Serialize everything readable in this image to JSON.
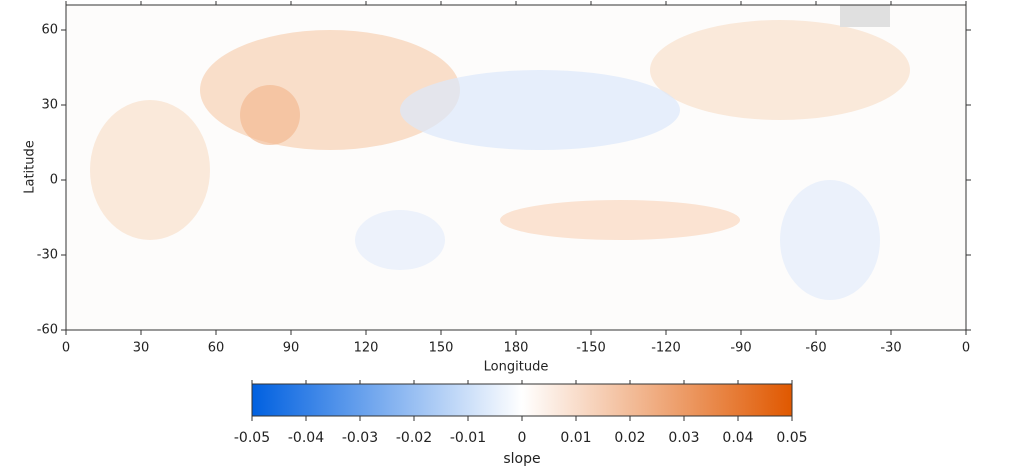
{
  "chart_data": {
    "type": "map",
    "x_label": "Longitude",
    "y_label": "Latitude",
    "xlim": [
      0,
      360
    ],
    "ylim": [
      -60,
      70
    ],
    "xticks": [
      0,
      30,
      60,
      90,
      120,
      150,
      180,
      {
        "value": 210,
        "label": "-150"
      },
      {
        "value": 240,
        "label": "-120"
      },
      {
        "value": 270,
        "label": "-90"
      },
      {
        "value": 300,
        "label": "-60"
      },
      {
        "value": 330,
        "label": "-30"
      },
      {
        "value": 360,
        "label": "0"
      }
    ],
    "yticks": [
      60,
      30,
      0,
      -30,
      -60
    ],
    "colorbar": {
      "label": "slope",
      "lim": [
        -0.05,
        0.05
      ],
      "ticks": [
        -0.05,
        -0.04,
        -0.03,
        -0.02,
        -0.01,
        0,
        0.01,
        0.02,
        0.03,
        0.04,
        0.05
      ],
      "colors": [
        "#0060e0",
        "#ffffff",
        "#e05800"
      ]
    }
  }
}
